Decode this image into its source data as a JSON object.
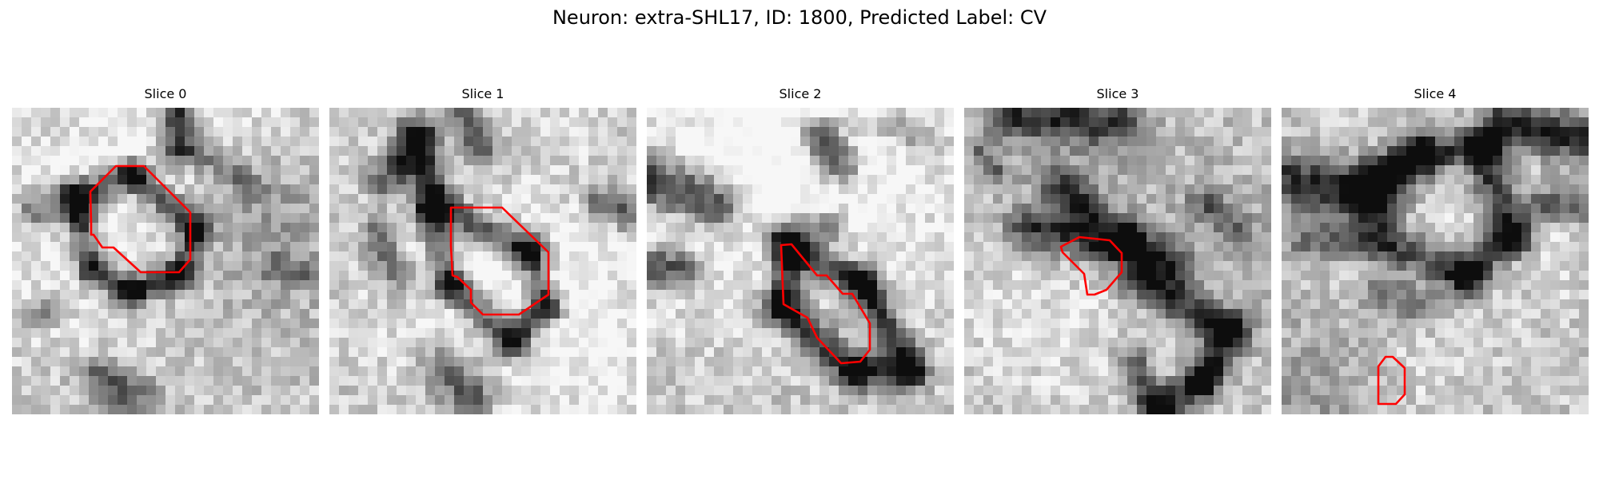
{
  "figure": {
    "title": "Neuron: extra-SHL17, ID: 1800, Predicted Label: CV"
  },
  "colors": {
    "contour": "#ff0000",
    "background": "#ffffff"
  },
  "slices": [
    {
      "label": "Slice 0"
    },
    {
      "label": "Slice 1"
    },
    {
      "label": "Slice 2"
    },
    {
      "label": "Slice 3"
    },
    {
      "label": "Slice 4"
    }
  ]
}
